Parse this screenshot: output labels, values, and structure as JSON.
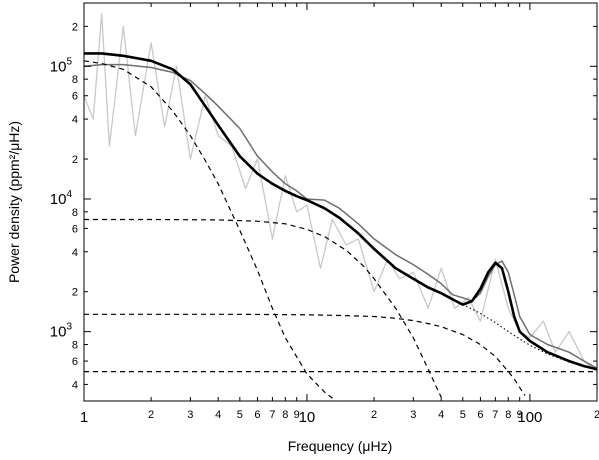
{
  "chart_data": {
    "type": "line",
    "xlabel": "Frequency (μHz)",
    "ylabel": "Power density (ppm²/μHz)",
    "x_scale": "log",
    "y_scale": "log",
    "xlim": [
      1,
      200
    ],
    "ylim": [
      300,
      300000
    ],
    "grid": false,
    "x_ticks": {
      "major": [
        {
          "value": 1,
          "label": "1"
        },
        {
          "value": 10,
          "label": "10"
        },
        {
          "value": 100,
          "label": "100"
        }
      ],
      "minor": [
        {
          "value": 2,
          "label": "2"
        },
        {
          "value": 3,
          "label": "3"
        },
        {
          "value": 4,
          "label": "4"
        },
        {
          "value": 5,
          "label": "5"
        },
        {
          "value": 6,
          "label": "6"
        },
        {
          "value": 7,
          "label": "7"
        },
        {
          "value": 8,
          "label": "8"
        },
        {
          "value": 9,
          "label": "9"
        },
        {
          "value": 20,
          "label": "2"
        },
        {
          "value": 30,
          "label": "3"
        },
        {
          "value": 40,
          "label": "4"
        },
        {
          "value": 50,
          "label": "5"
        },
        {
          "value": 60,
          "label": "6"
        },
        {
          "value": 70,
          "label": "7"
        },
        {
          "value": 80,
          "label": "8"
        },
        {
          "value": 90,
          "label": "9"
        },
        {
          "value": 200,
          "label": "2"
        }
      ]
    },
    "y_ticks": {
      "major": [
        {
          "value": 1000,
          "base": "10",
          "exp": "3"
        },
        {
          "value": 10000,
          "base": "10",
          "exp": "4"
        },
        {
          "value": 100000,
          "base": "10",
          "exp": "5"
        }
      ],
      "minor": [
        {
          "value": 400,
          "label": "4"
        },
        {
          "value": 600,
          "label": "6"
        },
        {
          "value": 800,
          "label": "8"
        },
        {
          "value": 2000,
          "label": "2"
        },
        {
          "value": 4000,
          "label": "4"
        },
        {
          "value": 6000,
          "label": "6"
        },
        {
          "value": 8000,
          "label": "8"
        },
        {
          "value": 20000,
          "label": "2"
        },
        {
          "value": 40000,
          "label": "4"
        },
        {
          "value": 60000,
          "label": "6"
        },
        {
          "value": 80000,
          "label": "8"
        },
        {
          "value": 200000,
          "label": "2"
        }
      ]
    },
    "series": [
      {
        "style": "light-gray-raw",
        "color": "#c8c8c8",
        "x": [
          1.0,
          1.1,
          1.2,
          1.3,
          1.5,
          1.7,
          2.0,
          2.3,
          2.6,
          3.0,
          3.5,
          4.0,
          4.6,
          5.3,
          6.0,
          7.0,
          8.0,
          9.0,
          10,
          11.5,
          13,
          15,
          17,
          20,
          23,
          26,
          30,
          35,
          40,
          46,
          53,
          60,
          70,
          80,
          90,
          100,
          115,
          130,
          150,
          175,
          200
        ],
        "y": [
          60000,
          40000,
          250000,
          25000,
          200000,
          30000,
          150000,
          35000,
          100000,
          20000,
          60000,
          30000,
          25000,
          12000,
          20000,
          5000,
          15000,
          8000,
          9000,
          3000,
          7000,
          4500,
          5000,
          2000,
          3500,
          2500,
          2800,
          1500,
          3000,
          1500,
          1800,
          1200,
          3500,
          1500,
          1000,
          900,
          1200,
          700,
          1000,
          600,
          500
        ]
      },
      {
        "style": "gray-smoothed",
        "color": "#6e6e6e",
        "x": [
          1.0,
          1.2,
          1.5,
          2.0,
          2.5,
          3.0,
          3.5,
          4.0,
          5.0,
          6.0,
          7.0,
          8.0,
          9.0,
          10,
          12,
          14,
          17,
          20,
          25,
          30,
          35,
          40,
          45,
          50,
          55,
          60,
          65,
          70,
          75,
          80,
          85,
          90,
          100,
          120,
          150,
          175,
          200
        ],
        "y": [
          100000,
          103000,
          103000,
          98000,
          90000,
          78000,
          62000,
          50000,
          34000,
          21000,
          16000,
          13000,
          11500,
          10000,
          9800,
          8500,
          6500,
          5000,
          3800,
          3200,
          2700,
          2300,
          1900,
          1800,
          1700,
          1950,
          2600,
          3200,
          3400,
          2800,
          1900,
          1300,
          950,
          800,
          700,
          600,
          530
        ]
      },
      {
        "style": "black-fit",
        "color": "#000000",
        "x": [
          1.0,
          1.2,
          1.5,
          2.0,
          2.5,
          3.0,
          3.5,
          4.0,
          5.0,
          6.0,
          7.0,
          8.0,
          9.0,
          10,
          12,
          14,
          17,
          20,
          25,
          30,
          35,
          40,
          45,
          50,
          55,
          60,
          65,
          70,
          75,
          80,
          85,
          90,
          100,
          120,
          150,
          175,
          200
        ],
        "y": [
          125000,
          125000,
          120000,
          110000,
          95000,
          73000,
          50000,
          36000,
          21000,
          15500,
          13000,
          11500,
          10500,
          9800,
          8500,
          7200,
          5500,
          4200,
          3000,
          2500,
          2150,
          1950,
          1750,
          1600,
          1700,
          2100,
          2800,
          3300,
          3000,
          2000,
          1300,
          1000,
          850,
          700,
          600,
          550,
          520
        ]
      },
      {
        "style": "dashed-low-frequency",
        "color": "#000000",
        "x": [
          1.0,
          1.2,
          1.5,
          2.0,
          2.5,
          3.0,
          3.5,
          4.0,
          5.0,
          6.0,
          7.0,
          8.0,
          10,
          12,
          13.5
        ],
        "y": [
          110000,
          105000,
          95000,
          70000,
          46000,
          30000,
          19500,
          13000,
          5800,
          2900,
          1500,
          900,
          480,
          350,
          300
        ]
      },
      {
        "style": "dashed-mid-frequency",
        "color": "#000000",
        "x": [
          1.0,
          2.0,
          4.0,
          6.0,
          8.0,
          10,
          12,
          15,
          18,
          20,
          25,
          30,
          35,
          40
        ],
        "y": [
          7000,
          7000,
          6950,
          6800,
          6500,
          5900,
          5200,
          4100,
          3100,
          2500,
          1500,
          900,
          520,
          320
        ]
      },
      {
        "style": "dashed-high-frequency",
        "color": "#000000",
        "x": [
          1.0,
          5.0,
          10,
          15,
          20,
          25,
          30,
          35,
          40,
          50,
          60,
          70,
          80,
          85,
          95
        ],
        "y": [
          1350,
          1350,
          1340,
          1320,
          1300,
          1260,
          1210,
          1150,
          1090,
          950,
          800,
          650,
          500,
          440,
          330
        ]
      },
      {
        "style": "dashed-white-noise",
        "color": "#000000",
        "x": [
          1.0,
          200
        ],
        "y": [
          500,
          500
        ]
      },
      {
        "style": "dotted-background",
        "color": "#000000",
        "x": [
          40,
          45,
          50,
          55,
          60,
          70,
          80,
          90,
          100,
          120,
          150,
          200
        ],
        "y": [
          1950,
          1780,
          1600,
          1480,
          1370,
          1170,
          1000,
          880,
          790,
          680,
          590,
          520
        ]
      }
    ]
  }
}
